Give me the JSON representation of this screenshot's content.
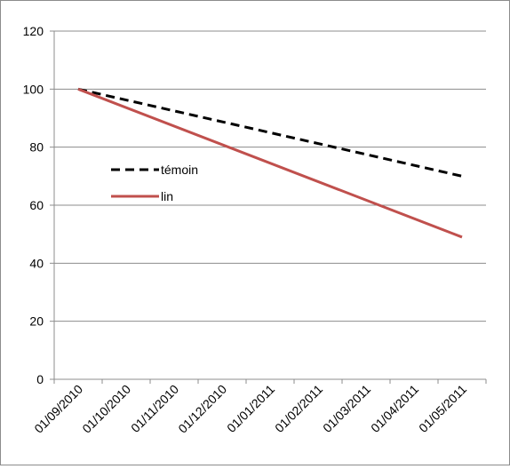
{
  "chart_data": {
    "type": "line",
    "categories": [
      "01/09/2010",
      "01/10/2010",
      "01/11/2010",
      "01/12/2010",
      "01/01/2011",
      "01/02/2011",
      "01/03/2011",
      "01/04/2011",
      "01/05/2011"
    ],
    "y_ticks": [
      "0",
      "20",
      "40",
      "60",
      "80",
      "100",
      "120"
    ],
    "ylim": [
      0,
      120
    ],
    "grid": true,
    "legend_position": "left-center inside plot",
    "series": [
      {
        "name": "témoin",
        "color": "#000000",
        "dash": "dashed",
        "points": [
          [
            "01/09/2010",
            100
          ],
          [
            "01/05/2011",
            70
          ]
        ]
      },
      {
        "name": "lin",
        "color": "#c0504d",
        "dash": "solid",
        "points": [
          [
            "01/09/2010",
            100
          ],
          [
            "01/05/2011",
            49
          ]
        ]
      }
    ]
  }
}
